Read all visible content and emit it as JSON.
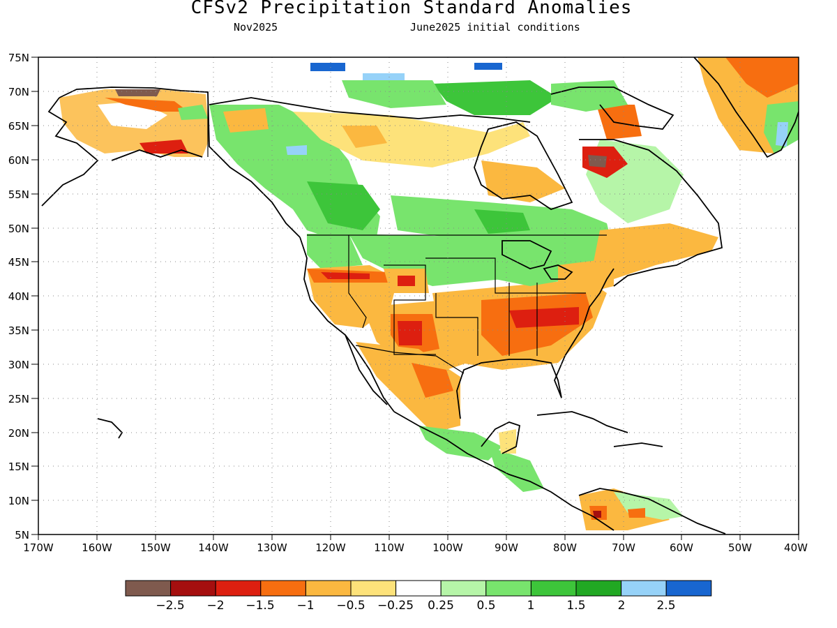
{
  "header": {
    "title": "CFSv2 Precipitation Standard Anomalies",
    "valid_month": "Nov2025",
    "init": "June2025 initial conditions"
  },
  "axes": {
    "lat_labels": [
      "75N",
      "70N",
      "65N",
      "60N",
      "55N",
      "50N",
      "45N",
      "40N",
      "35N",
      "30N",
      "25N",
      "20N",
      "15N",
      "10N",
      "5N"
    ],
    "lon_labels": [
      "170W",
      "160W",
      "150W",
      "140W",
      "130W",
      "120W",
      "110W",
      "100W",
      "90W",
      "80W",
      "70W",
      "60W",
      "50W",
      "40W"
    ],
    "lat_range": [
      5,
      75
    ],
    "lon_range": [
      -170,
      -40
    ],
    "grid": "dotted"
  },
  "colorbar": {
    "colors": [
      "#7f5a4e",
      "#a50f0f",
      "#dd1f10",
      "#f76e10",
      "#fbb840",
      "#fde27a",
      "#ffffff",
      "#b6f5a8",
      "#78e46d",
      "#3dc53a",
      "#21a823",
      "#96d2f8",
      "#1866d0"
    ],
    "labels": [
      "−2.5",
      "−2",
      "−1.5",
      "−1",
      "−0.5",
      "−0.25",
      "0.25",
      "0.5",
      "1",
      "1.5",
      "2",
      "2.5"
    ]
  },
  "legend_colors": {
    "dry_strong": "#a50f0f",
    "dry_moderate": "#f76e10",
    "dry_weak": "#fbb840",
    "neutral": "#ffffff",
    "wet_weak": "#78e46d",
    "wet_strong": "#21a823",
    "very_wet": "#1866d0"
  }
}
